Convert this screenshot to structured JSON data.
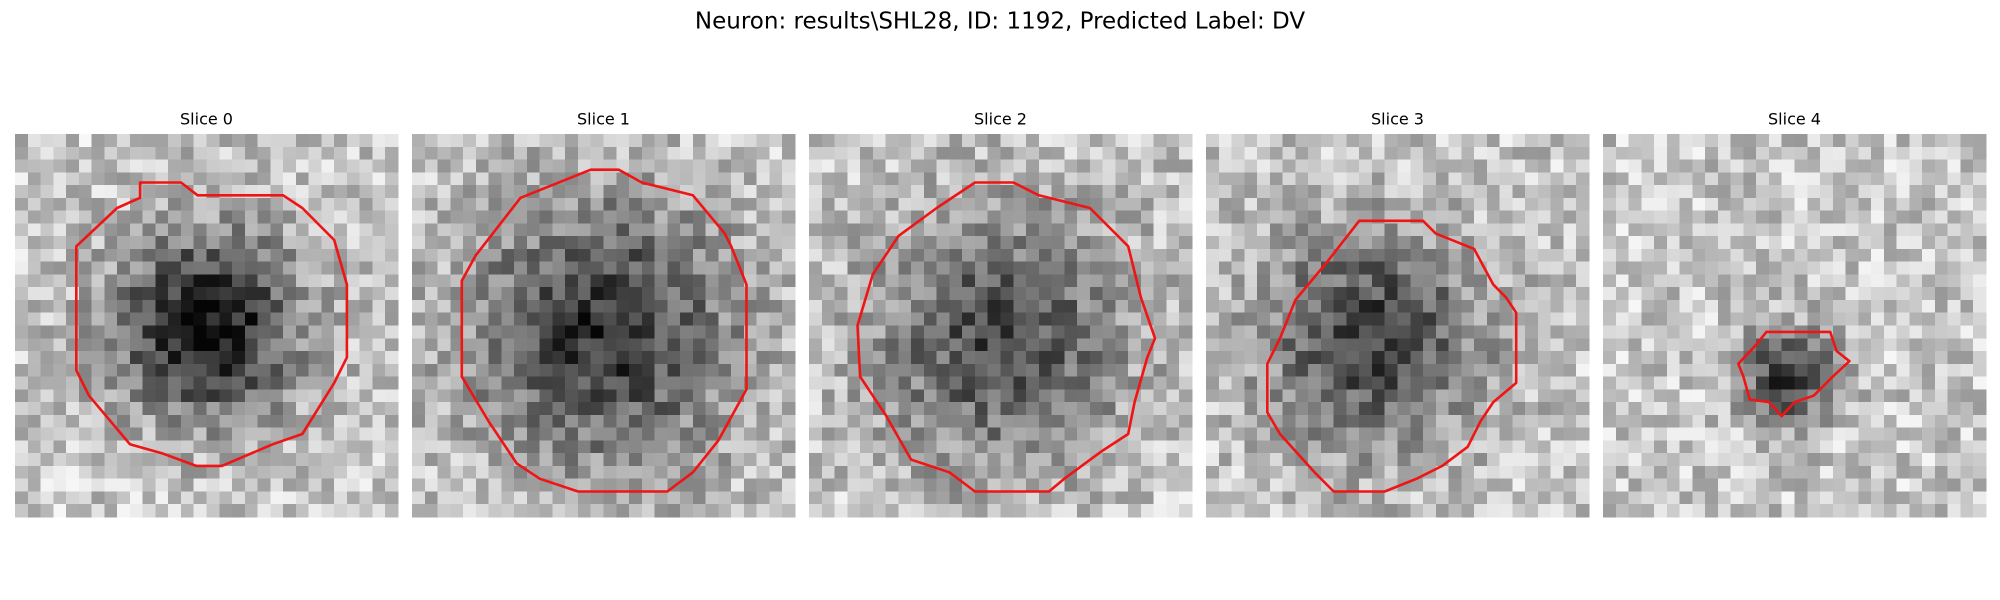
{
  "title": "Neuron: results\\SHL28, ID: 1192, Predicted Label: DV",
  "panels": [
    {
      "title": "Slice 0"
    },
    {
      "title": "Slice 1"
    },
    {
      "title": "Slice 2"
    },
    {
      "title": "Slice 3"
    },
    {
      "title": "Slice 4"
    }
  ]
}
